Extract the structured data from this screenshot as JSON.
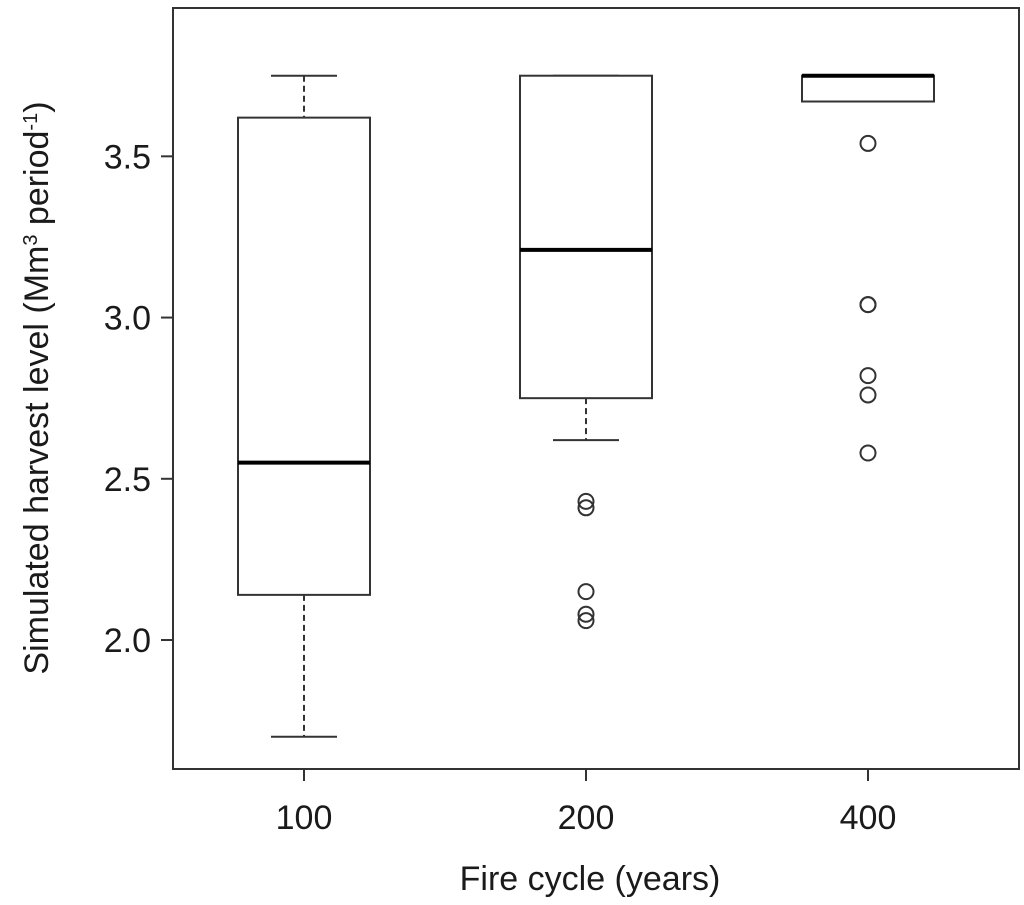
{
  "chart_data": {
    "type": "boxplot",
    "xlabel": "Fire cycle (years)",
    "ylabel": {
      "parts": [
        {
          "text": "Simulated harvest level (Mm",
          "sup": false
        },
        {
          "text": "3",
          "sup": true
        },
        {
          "text": " period",
          "sup": false
        },
        {
          "text": "-1",
          "sup": true
        },
        {
          "text": ")",
          "sup": false
        }
      ]
    },
    "ylim": [
      1.6,
      3.96
    ],
    "yticks": [
      2.0,
      2.5,
      3.0,
      3.5
    ],
    "ytick_labels": [
      "2.0",
      "2.5",
      "3.0",
      "3.5"
    ],
    "grid": false,
    "legend": "none",
    "categories": [
      "100",
      "200",
      "400"
    ],
    "boxes": [
      {
        "category": "100",
        "whisker_low": 1.7,
        "q1": 2.14,
        "median": 2.55,
        "q3": 3.62,
        "whisker_high": 3.75,
        "outliers": []
      },
      {
        "category": "200",
        "whisker_low": 2.62,
        "q1": 2.75,
        "median": 3.21,
        "q3": 3.75,
        "whisker_high": 3.75,
        "outliers": [
          2.43,
          2.41,
          2.15,
          2.08,
          2.06
        ]
      },
      {
        "category": "400",
        "whisker_low": 3.67,
        "q1": 3.67,
        "median": 3.75,
        "q3": 3.75,
        "whisker_high": 3.75,
        "outliers": [
          3.54,
          3.04,
          3.04,
          2.82,
          2.76,
          2.58
        ]
      }
    ],
    "colors": {
      "stroke": "#333333",
      "median": "#000000",
      "background": "#ffffff"
    }
  }
}
